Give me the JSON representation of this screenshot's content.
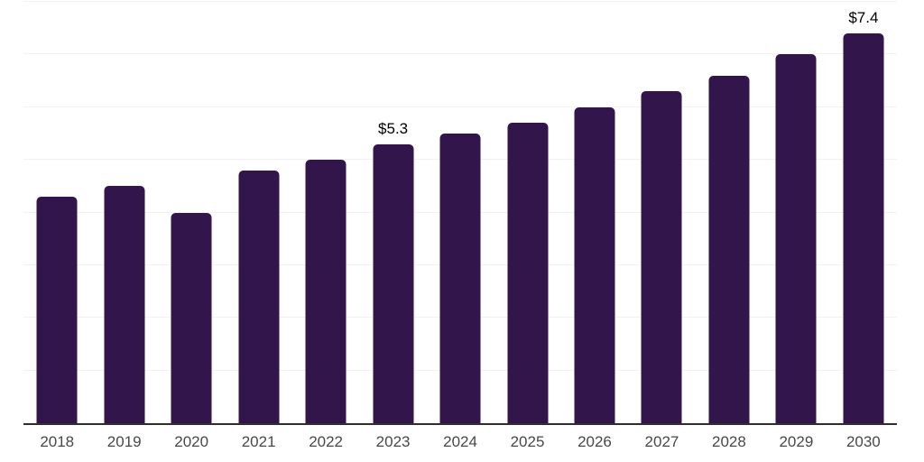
{
  "chart": {
    "background_color": "#ffffff",
    "bar_color": "#32154a",
    "grid_color": "#f2f2f2",
    "axis_color": "#2e2e2e",
    "tick_label_color": "#484848",
    "annotation_color": "#000000"
  },
  "chart_data": {
    "type": "bar",
    "title": "",
    "xlabel": "",
    "ylabel": "",
    "categories": [
      "2018",
      "2019",
      "2020",
      "2021",
      "2022",
      "2023",
      "2024",
      "2025",
      "2026",
      "2027",
      "2028",
      "2029",
      "2030"
    ],
    "values": [
      4.3,
      4.5,
      4.0,
      4.8,
      5.0,
      5.3,
      5.5,
      5.7,
      6.0,
      6.3,
      6.6,
      7.0,
      7.4
    ],
    "annotations": [
      {
        "index": 5,
        "category": "2023",
        "label": "$5.3"
      },
      {
        "index": 12,
        "category": "2030",
        "label": "$7.4"
      }
    ],
    "ylim": [
      0,
      8
    ],
    "grid_step": 1,
    "grid": true,
    "y_axis_labels_shown": false,
    "legend": false
  }
}
